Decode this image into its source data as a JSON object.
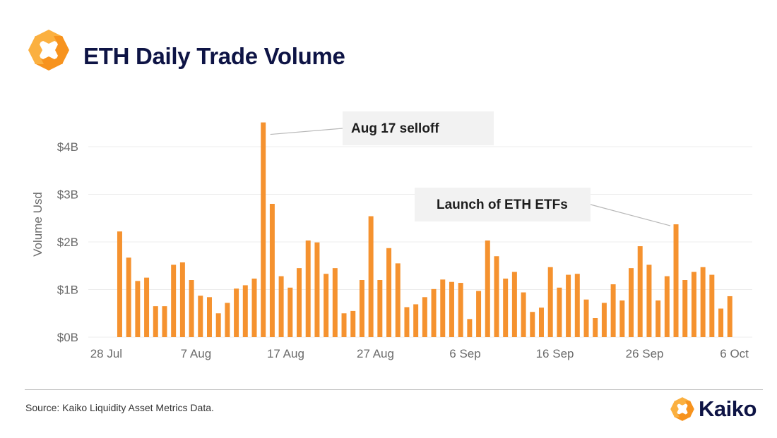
{
  "header": {
    "title": "ETH Daily Trade Volume",
    "logo_icon": "kaiko-logo-icon"
  },
  "colors": {
    "bar": "#f5922f",
    "title": "#0e1445",
    "logo_orange": "#f7931e",
    "logo_orange_light": "#fbb040",
    "annotation_bg": "#f2f2f2",
    "gridline": "#ececec"
  },
  "chart_data": {
    "type": "bar",
    "title": "ETH Daily Trade Volume",
    "xlabel": "",
    "ylabel": "Volume Usd",
    "ylim": [
      0,
      4.5
    ],
    "y_unit": "billion USD",
    "yticks": [
      {
        "value": 0,
        "label": "$0B"
      },
      {
        "value": 1,
        "label": "$1B"
      },
      {
        "value": 2,
        "label": "$2B"
      },
      {
        "value": 3,
        "label": "$3B"
      },
      {
        "value": 4,
        "label": "$4B"
      }
    ],
    "xlim_days": [
      -2,
      72
    ],
    "xticks": [
      {
        "day": 0,
        "label": "28 Jul"
      },
      {
        "day": 10,
        "label": "7 Aug"
      },
      {
        "day": 20,
        "label": "17 Aug"
      },
      {
        "day": 30,
        "label": "27 Aug"
      },
      {
        "day": 40,
        "label": "6 Sep"
      },
      {
        "day": 50,
        "label": "16 Sep"
      },
      {
        "day": 60,
        "label": "26 Sep"
      },
      {
        "day": 70,
        "label": "6 Oct"
      }
    ],
    "start_day": 1.5,
    "bar_width_days": 0.55,
    "values": [
      2.22,
      1.67,
      1.18,
      1.25,
      0.65,
      0.65,
      1.52,
      1.57,
      1.2,
      0.87,
      0.84,
      0.5,
      0.72,
      1.02,
      1.09,
      1.23,
      4.51,
      2.8,
      1.28,
      1.04,
      1.45,
      2.03,
      1.99,
      1.33,
      1.45,
      0.5,
      0.55,
      1.2,
      2.54,
      1.2,
      1.87,
      1.55,
      0.63,
      0.69,
      0.84,
      1.01,
      1.21,
      1.16,
      1.14,
      0.38,
      0.97,
      2.03,
      1.7,
      1.23,
      1.37,
      0.94,
      0.53,
      0.62,
      1.47,
      1.04,
      1.31,
      1.33,
      0.79,
      0.4,
      0.72,
      1.11,
      0.77,
      1.45,
      1.91,
      1.52,
      0.77,
      1.28,
      2.37,
      1.2,
      1.37,
      1.47,
      1.31,
      0.6,
      0.86
    ],
    "annotations": [
      {
        "text": "Aug 17 selloff",
        "bar_index": 16
      },
      {
        "text": "Launch of ETH ETFs",
        "bar_index": 62
      }
    ],
    "grid": true,
    "legend": "none"
  },
  "footer": {
    "source": "Source: Kaiko Liquidity Asset Metrics Data.",
    "brand": "Kaiko"
  }
}
